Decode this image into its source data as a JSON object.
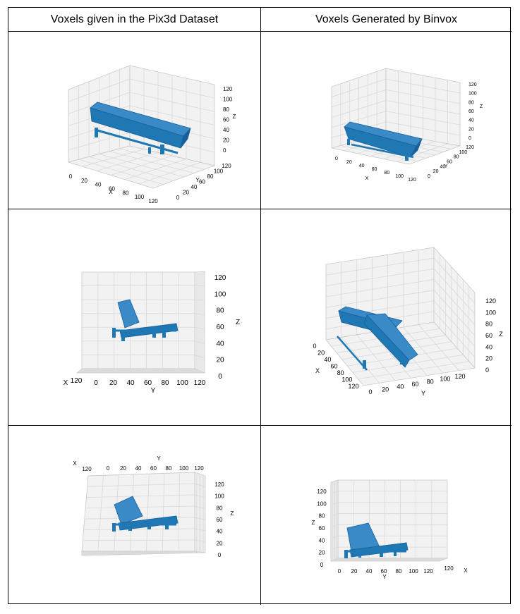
{
  "headers": {
    "left": "Voxels given in the Pix3d Dataset",
    "right": "Voxels Generated by Binvox"
  },
  "plots": [
    {
      "id": "dataset-view-1",
      "x_label": "X",
      "y_label": "Y",
      "z_label": "Z",
      "x_ticks": [
        "0",
        "20",
        "40",
        "60",
        "80",
        "100",
        "120"
      ],
      "y_ticks": [
        "0",
        "20",
        "40",
        "60",
        "80",
        "100",
        "120"
      ],
      "z_ticks": [
        "0",
        "20",
        "40",
        "60",
        "80",
        "100",
        "120"
      ]
    },
    {
      "id": "binvox-view-1",
      "x_label": "X",
      "y_label": "Y",
      "z_label": "Z",
      "x_ticks": [
        "0",
        "20",
        "40",
        "60",
        "80",
        "100",
        "120"
      ],
      "y_ticks": [
        "0",
        "20",
        "40",
        "60",
        "80",
        "100",
        "120"
      ],
      "z_ticks": [
        "0",
        "20",
        "40",
        "60",
        "80",
        "100",
        "120"
      ]
    },
    {
      "id": "dataset-view-2",
      "x_label": "X",
      "y_label": "Y",
      "z_label": "Z",
      "x_ticks": [
        "120"
      ],
      "y_ticks": [
        "0",
        "20",
        "40",
        "60",
        "80",
        "100",
        "120"
      ],
      "z_ticks": [
        "0",
        "20",
        "40",
        "60",
        "80",
        "100",
        "120"
      ]
    },
    {
      "id": "binvox-view-2",
      "x_label": "X",
      "y_label": "Y",
      "z_label": "Z",
      "x_ticks": [
        "0",
        "20",
        "40",
        "60",
        "80",
        "100",
        "120"
      ],
      "y_ticks": [
        "0",
        "20",
        "40",
        "60",
        "80",
        "100",
        "120"
      ],
      "z_ticks": [
        "0",
        "20",
        "40",
        "60",
        "80",
        "100",
        "120"
      ]
    },
    {
      "id": "dataset-view-3",
      "x_label": "X",
      "y_label": "Y",
      "z_label": "Z",
      "x_ticks": [
        "120"
      ],
      "y_ticks": [
        "0",
        "20",
        "40",
        "60",
        "80",
        "100",
        "120"
      ],
      "z_ticks": [
        "0",
        "20",
        "40",
        "60",
        "80",
        "100",
        "120"
      ]
    },
    {
      "id": "binvox-view-3",
      "x_label": "X",
      "y_label": "Y",
      "z_label": "Z",
      "x_ticks": [
        "120"
      ],
      "y_ticks": [
        "0",
        "20",
        "40",
        "60",
        "80",
        "100",
        "120"
      ],
      "z_ticks": [
        "0",
        "20",
        "40",
        "60",
        "80",
        "100",
        "120"
      ]
    }
  ],
  "colors": {
    "voxel": "#1f77b4",
    "voxel_dark": "#17609a",
    "grid": "#d9d9d9",
    "pane": "#f2f2f2"
  }
}
